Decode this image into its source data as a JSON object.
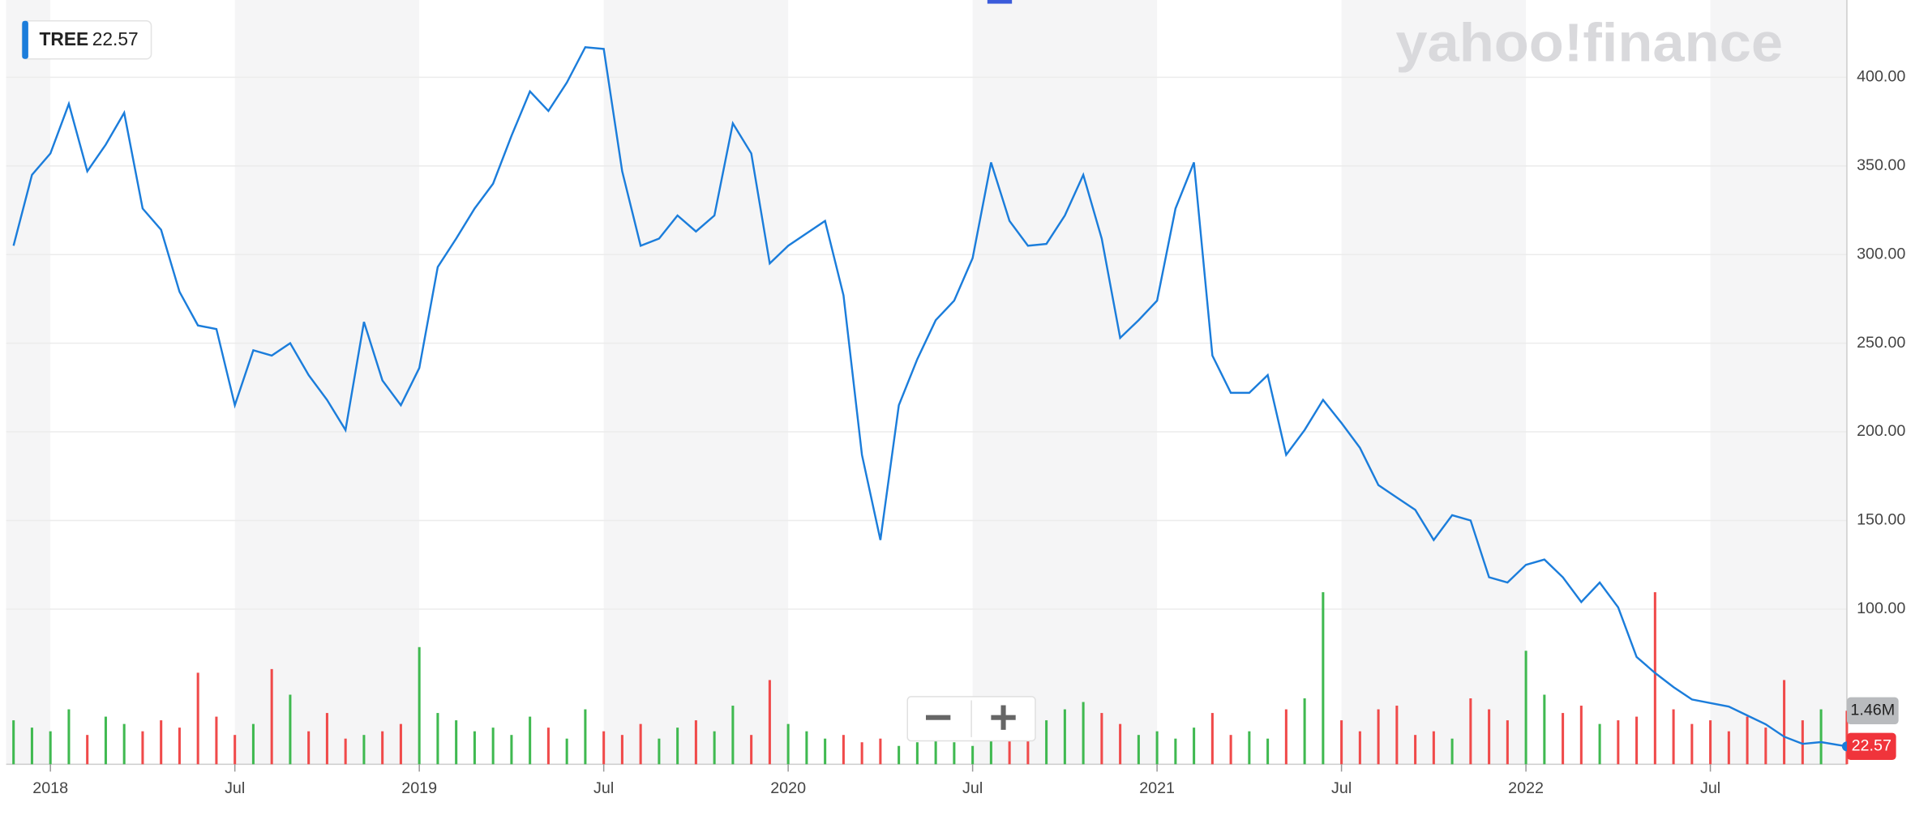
{
  "chart_data": {
    "type": "line",
    "ticker": "TREE",
    "watermark": "yahoo!finance",
    "x": [
      2017.9,
      2017.95,
      2018.0,
      2018.05,
      2018.1,
      2018.15,
      2018.2,
      2018.25,
      2018.3,
      2018.35,
      2018.4,
      2018.45,
      2018.5,
      2018.55,
      2018.6,
      2018.65,
      2018.7,
      2018.75,
      2018.8,
      2018.85,
      2018.9,
      2018.95,
      2019.0,
      2019.05,
      2019.1,
      2019.15,
      2019.2,
      2019.25,
      2019.3,
      2019.35,
      2019.4,
      2019.45,
      2019.5,
      2019.55,
      2019.6,
      2019.65,
      2019.7,
      2019.75,
      2019.8,
      2019.85,
      2019.9,
      2019.95,
      2020.0,
      2020.05,
      2020.1,
      2020.15,
      2020.2,
      2020.25,
      2020.3,
      2020.35,
      2020.4,
      2020.45,
      2020.5,
      2020.55,
      2020.6,
      2020.65,
      2020.7,
      2020.75,
      2020.8,
      2020.85,
      2020.9,
      2020.95,
      2021.0,
      2021.05,
      2021.1,
      2021.15,
      2021.2,
      2021.25,
      2021.3,
      2021.35,
      2021.4,
      2021.45,
      2021.5,
      2021.55,
      2021.6,
      2021.65,
      2021.7,
      2021.75,
      2021.8,
      2021.85,
      2021.9,
      2021.95,
      2022.0,
      2022.05,
      2022.1,
      2022.15,
      2022.2,
      2022.25,
      2022.3,
      2022.35,
      2022.4,
      2022.45,
      2022.5,
      2022.55,
      2022.6,
      2022.65,
      2022.7,
      2022.75,
      2022.8,
      2022.87
    ],
    "values": [
      305,
      345,
      357,
      385,
      347,
      362,
      380,
      326,
      314,
      279,
      260,
      258,
      215,
      246,
      243,
      250,
      232,
      218,
      201,
      262,
      229,
      215,
      236,
      293,
      309,
      326,
      340,
      367,
      392,
      381,
      397,
      417,
      416,
      347,
      305,
      309,
      322,
      313,
      322,
      374,
      357,
      295,
      305,
      312,
      319,
      277,
      187,
      139,
      215,
      241,
      263,
      274,
      298,
      352,
      319,
      305,
      306,
      322,
      345,
      309,
      253,
      263,
      274,
      326,
      352,
      243,
      222,
      222,
      232,
      187,
      201,
      218,
      205,
      191,
      170,
      163,
      156,
      139,
      153,
      150,
      118,
      115,
      125,
      128,
      118,
      104,
      115,
      101,
      73,
      64,
      56,
      49,
      47,
      45,
      40,
      35,
      28,
      24,
      25,
      22.57
    ],
    "value_labels": {
      "99": "22.57"
    },
    "color": "#1b7ddb",
    "volume": {
      "values": [
        1.2,
        1.0,
        0.9,
        1.5,
        0.8,
        1.3,
        1.1,
        0.9,
        1.2,
        1.0,
        2.5,
        1.3,
        0.8,
        1.1,
        2.6,
        1.9,
        0.9,
        1.4,
        0.7,
        0.8,
        0.9,
        1.1,
        3.2,
        1.4,
        1.2,
        0.9,
        1.0,
        0.8,
        1.3,
        1.0,
        0.7,
        1.5,
        0.9,
        0.8,
        1.1,
        0.7,
        1.0,
        1.2,
        0.9,
        1.6,
        0.8,
        2.3,
        1.1,
        0.9,
        0.7,
        0.8,
        0.6,
        0.7,
        0.5,
        0.6,
        0.8,
        0.6,
        0.5,
        0.7,
        0.9,
        1.3,
        1.2,
        1.5,
        1.7,
        1.4,
        1.1,
        0.8,
        0.9,
        0.7,
        1.0,
        1.4,
        0.8,
        0.9,
        0.7,
        1.5,
        1.8,
        4.7,
        1.2,
        0.9,
        1.5,
        1.6,
        0.8,
        0.9,
        0.7,
        1.8,
        1.5,
        1.2,
        3.1,
        1.9,
        1.4,
        1.6,
        1.1,
        1.2,
        1.3,
        4.7,
        1.5,
        1.1,
        1.2,
        0.9,
        1.3,
        1.0,
        2.3,
        1.2,
        1.5,
        1.46
      ],
      "value_labels": {
        "99": "1.46M"
      },
      "up_color": "#3fb950",
      "down_color": "#f04a4a"
    },
    "xlim": [
      2017.88,
      2022.87
    ],
    "xticks": [
      {
        "value": 2018,
        "label": "2018"
      },
      {
        "value": 2018.5,
        "label": "Jul"
      },
      {
        "value": 2019,
        "label": "2019"
      },
      {
        "value": 2019.5,
        "label": "Jul"
      },
      {
        "value": 2020,
        "label": "2020"
      },
      {
        "value": 2020.5,
        "label": "Jul"
      },
      {
        "value": 2021,
        "label": "2021"
      },
      {
        "value": 2021.5,
        "label": "Jul"
      },
      {
        "value": 2022,
        "label": "2022"
      },
      {
        "value": 2022.5,
        "label": "Jul"
      }
    ],
    "ylim": [
      12.5,
      443.6
    ],
    "yticks": [
      {
        "value": 100,
        "label": "100.00"
      },
      {
        "value": 150,
        "label": "150.00"
      },
      {
        "value": 200,
        "label": "200.00"
      },
      {
        "value": 250,
        "label": "250.00"
      },
      {
        "value": 300,
        "label": "300.00"
      },
      {
        "value": 350,
        "label": "350.00"
      },
      {
        "value": 400,
        "label": "400.00"
      }
    ],
    "grid": true
  }
}
